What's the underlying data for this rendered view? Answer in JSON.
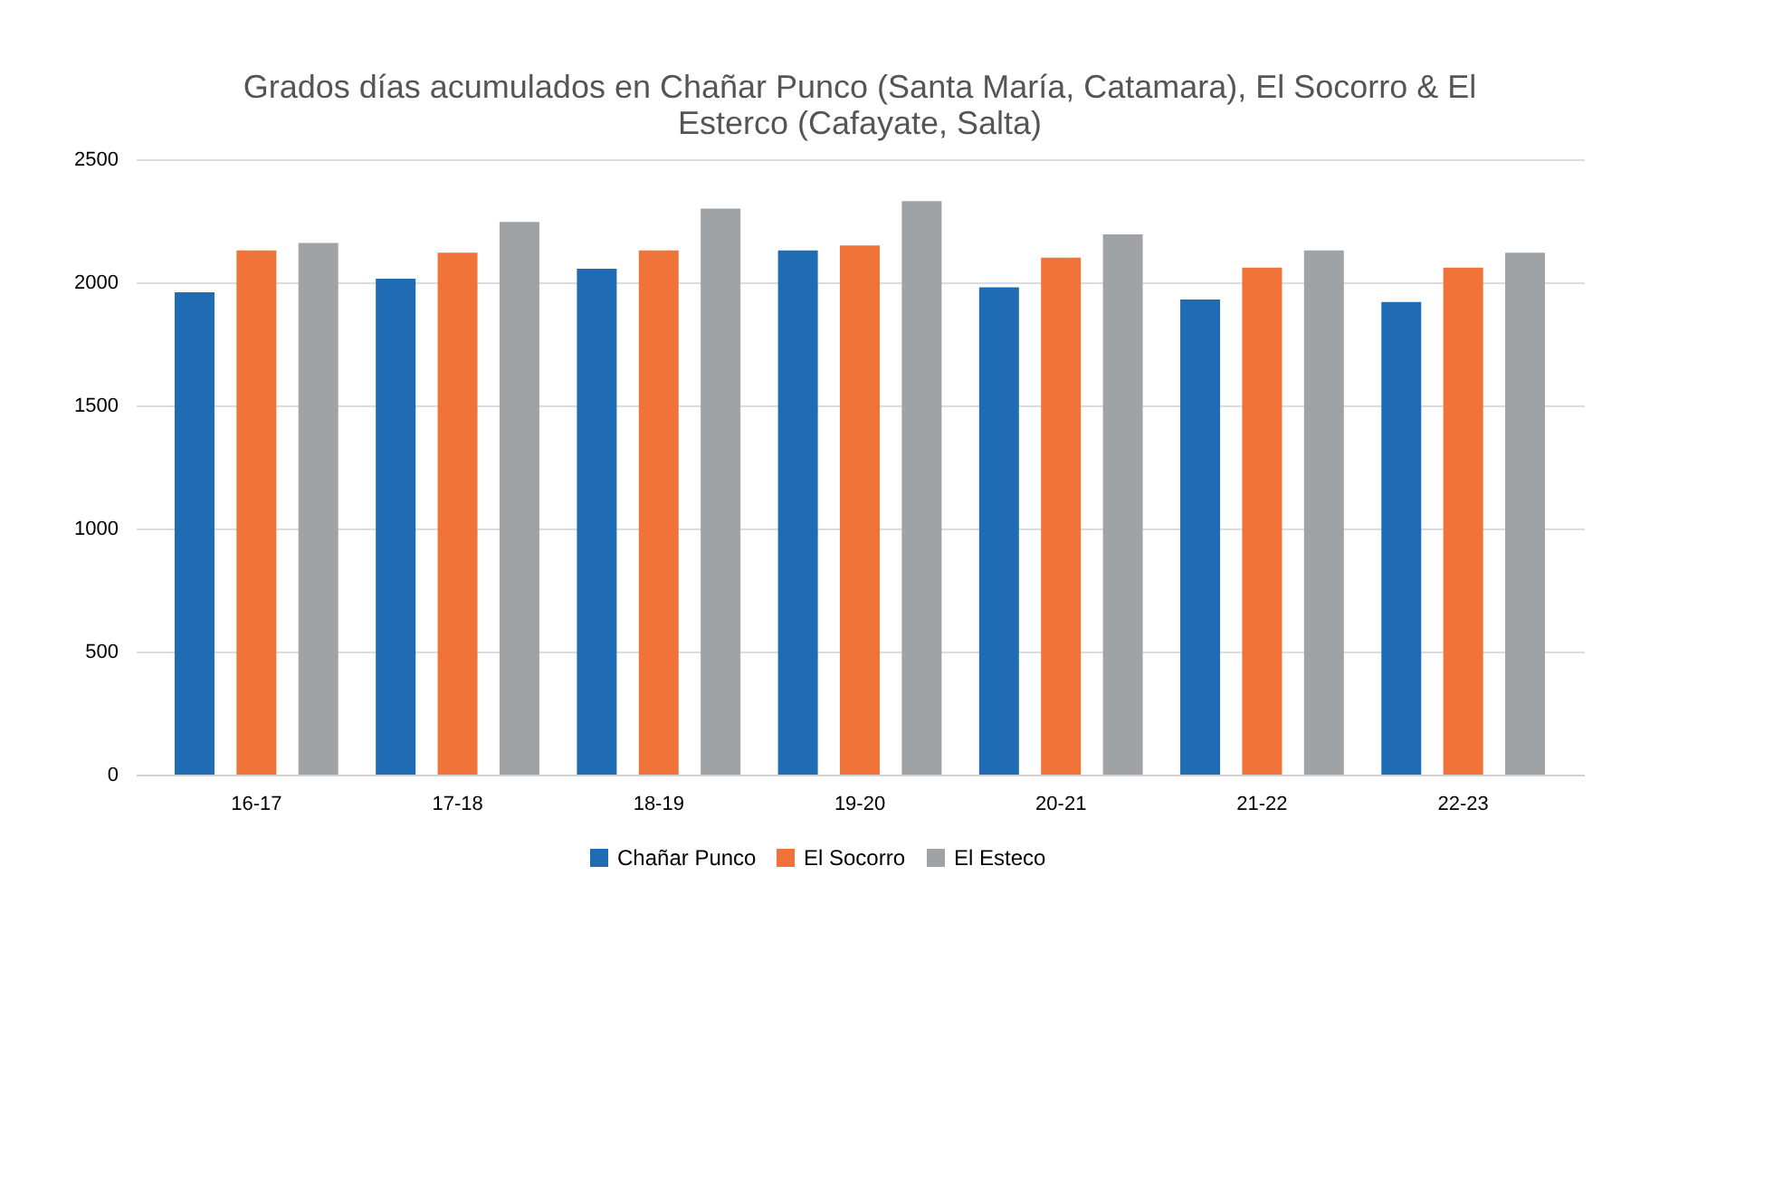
{
  "chart_data": {
    "type": "bar",
    "title": [
      "Grados días acumulados en Chañar Punco (Santa María, Catamara), El Socorro & El",
      "Esterco (Cafayate, Salta)"
    ],
    "categories": [
      "16-17",
      "17-18",
      "18-19",
      "19-20",
      "20-21",
      "21-22",
      "22-23"
    ],
    "series": [
      {
        "name": "Chañar Punco",
        "color": "#1f6cb5",
        "values": [
          1960,
          2015,
          2055,
          2130,
          1980,
          1930,
          1920
        ]
      },
      {
        "name": "El Socorro",
        "color": "#f0733a",
        "values": [
          2130,
          2120,
          2130,
          2150,
          2100,
          2060,
          2060
        ]
      },
      {
        "name": "El Esteco",
        "color": "#a0a3a5",
        "values": [
          2160,
          2245,
          2300,
          2330,
          2195,
          2130,
          2120
        ]
      }
    ],
    "ylim": [
      0,
      2500
    ],
    "yticks": [
      0,
      500,
      1000,
      1500,
      2000,
      2500
    ],
    "grid": "y",
    "legend": "bottom"
  }
}
